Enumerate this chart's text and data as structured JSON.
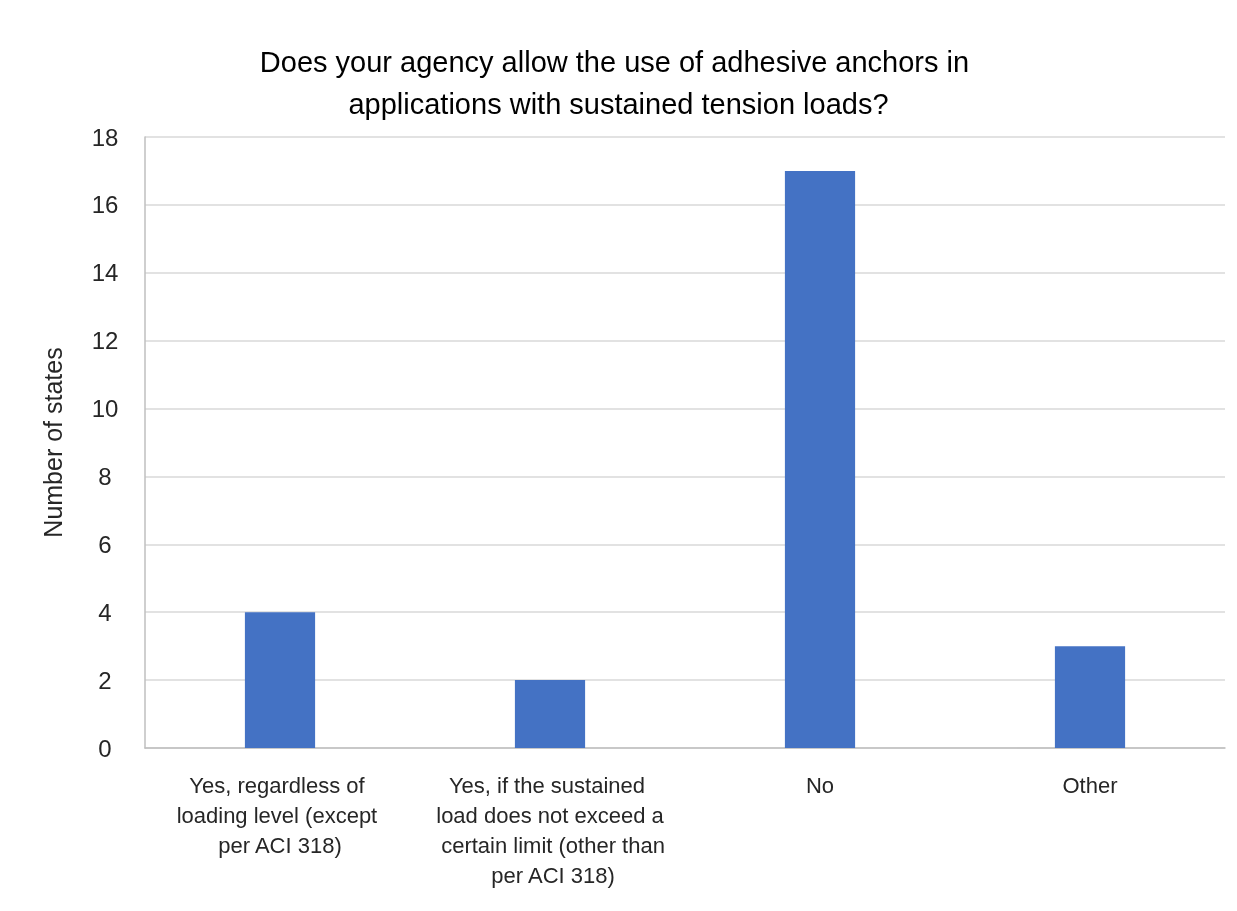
{
  "chart_data": {
    "type": "bar",
    "title": "Does your agency allow the use of adhesive anchors in applications with sustained tension loads?",
    "ylabel": "Number of states",
    "categories": [
      "Yes, regardless of loading level (except per ACI 318)",
      "Yes, if the sustained load does not exceed a certain limit (other than per ACI 318)",
      "No",
      "Other"
    ],
    "values": [
      4,
      2,
      17,
      3
    ],
    "color": "#4472c4",
    "ylim": [
      0,
      18
    ],
    "yticks": [
      0,
      2,
      4,
      6,
      8,
      10,
      12,
      14,
      16,
      18
    ],
    "grid": "y"
  }
}
